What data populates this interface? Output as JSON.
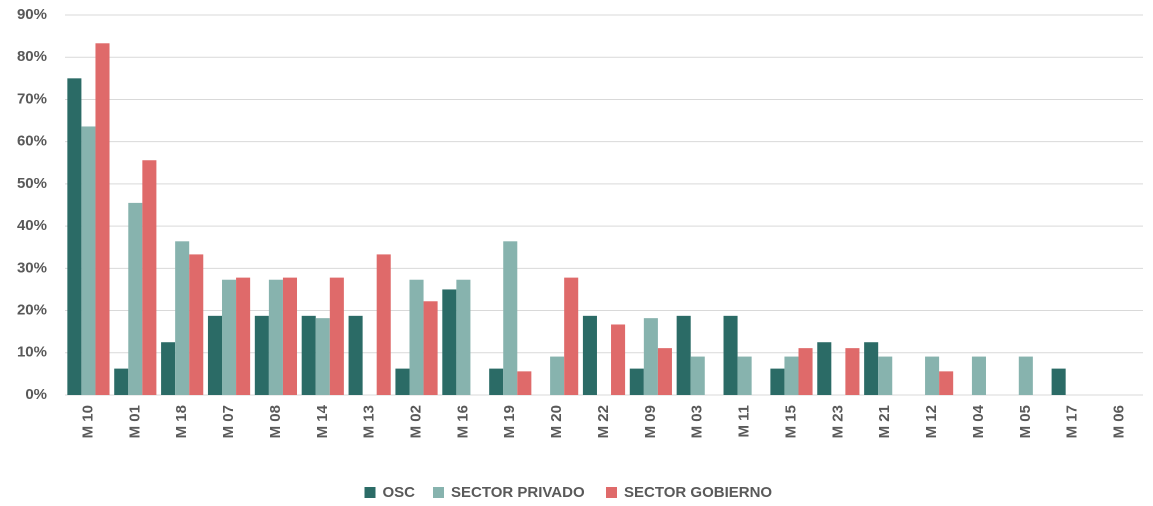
{
  "chart_data": {
    "type": "bar",
    "categories": [
      "M 10",
      "M 01",
      "M 18",
      "M 07",
      "M 08",
      "M 14",
      "M 13",
      "M 02",
      "M 16",
      "M 19",
      "M 20",
      "M 22",
      "M 09",
      "M 03",
      "M 11",
      "M 15",
      "M 23",
      "M 21",
      "M 12",
      "M 04",
      "M 05",
      "M 17",
      "M 06"
    ],
    "series": [
      {
        "name": "OSC",
        "color": "#2b6b66",
        "values": [
          75,
          6.25,
          12.5,
          18.75,
          18.75,
          18.75,
          18.75,
          6.25,
          25,
          6.25,
          0,
          18.75,
          6.25,
          18.75,
          18.75,
          6.25,
          12.5,
          12.5,
          0,
          0,
          0,
          6.25,
          0
        ]
      },
      {
        "name": "SECTOR PRIVADO",
        "color": "#87b3ae",
        "values": [
          63.6,
          45.5,
          36.4,
          27.3,
          27.3,
          18.2,
          0,
          27.3,
          27.3,
          36.4,
          9.1,
          0,
          18.2,
          9.1,
          9.1,
          9.1,
          0,
          9.1,
          9.1,
          9.1,
          9.1,
          0,
          0
        ]
      },
      {
        "name": "SECTOR GOBIERNO",
        "color": "#df6a6a",
        "values": [
          83.3,
          55.6,
          33.3,
          27.8,
          27.8,
          27.8,
          33.3,
          22.2,
          0,
          5.6,
          27.8,
          16.7,
          11.1,
          0,
          0,
          11.1,
          11.1,
          0,
          5.6,
          0,
          0,
          0,
          0
        ]
      }
    ],
    "ylim": [
      0,
      90
    ],
    "yticks": [
      {
        "value": 0,
        "label": "0%"
      },
      {
        "value": 10,
        "label": "10%"
      },
      {
        "value": 20,
        "label": "20%"
      },
      {
        "value": 30,
        "label": "30%"
      },
      {
        "value": 40,
        "label": "40%"
      },
      {
        "value": 50,
        "label": "50%"
      },
      {
        "value": 60,
        "label": "60%"
      },
      {
        "value": 70,
        "label": "70%"
      },
      {
        "value": 80,
        "label": "80%"
      },
      {
        "value": 90,
        "label": "90%"
      }
    ],
    "grid": true,
    "legend": "bottom"
  }
}
